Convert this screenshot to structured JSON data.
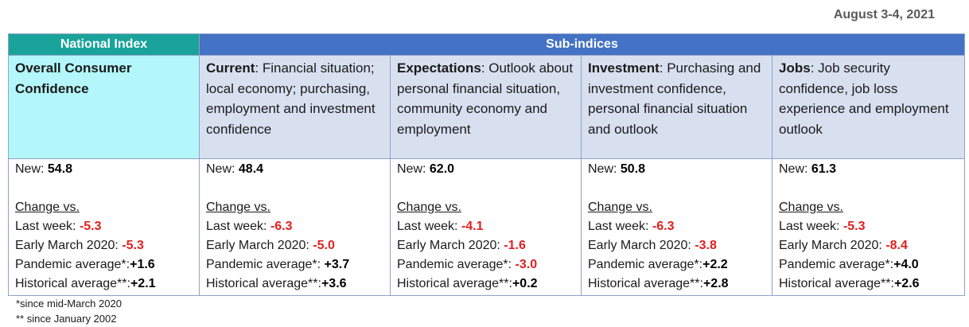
{
  "date": "August 3-4, 2021",
  "headers": {
    "national": "National Index",
    "sub": "Sub-indices"
  },
  "columns": [
    {
      "title": "Overall Consumer Confidence",
      "desc": "",
      "new_label": "New:",
      "new_value": "54.8",
      "change_label": "Change vs.",
      "last_week_label": "Last week:",
      "last_week": "-5.3",
      "early_march_label": "Early March 2020:",
      "early_march": "-5.3",
      "pandemic_label": "Pandemic average*:",
      "pandemic": "+1.6",
      "historical_label": "Historical average**:",
      "historical": "+2.1"
    },
    {
      "title": "Current",
      "desc": ":  Financial situation; local economy; purchasing, employment and investment confidence",
      "new_label": "New:",
      "new_value": "48.4",
      "change_label": "Change vs.",
      "last_week_label": "Last week:",
      "last_week": "-6.3",
      "early_march_label": "Early March 2020:",
      "early_march": "-5.0",
      "pandemic_label": "Pandemic average*:",
      "pandemic": "+3.7",
      "historical_label": "Historical average**:",
      "historical": "+3.6"
    },
    {
      "title": "Expectations",
      "desc": ": Outlook about personal financial situation, community economy and employment",
      "new_label": "New:",
      "new_value": "62.0",
      "change_label": "Change vs.",
      "last_week_label": "Last week:",
      "last_week": "-4.1",
      "early_march_label": "Early March 2020:",
      "early_march": "-1.6",
      "pandemic_label": "Pandemic average*:",
      "pandemic": "-3.0",
      "historical_label": "Historical average**:",
      "historical": "+0.2"
    },
    {
      "title": "Investment",
      "desc": ": Purchasing and investment confidence, personal financial situation and outlook",
      "new_label": "New:",
      "new_value": "50.8",
      "change_label": "Change vs.",
      "last_week_label": "Last week:",
      "last_week": "-6.3",
      "early_march_label": "Early March 2020:",
      "early_march": "-3.8",
      "pandemic_label": "Pandemic average*:",
      "pandemic": "+2.2",
      "historical_label": "Historical average**:",
      "historical": "+2.8"
    },
    {
      "title": "Jobs",
      "desc": ": Job security confidence, job loss experience and employment outlook",
      "new_label": "New:",
      "new_value": "61.3",
      "change_label": "Change vs.",
      "last_week_label": "Last week:",
      "last_week": "-5.3",
      "early_march_label": "Early March 2020:",
      "early_march": "-8.4",
      "pandemic_label": "Pandemic average*:",
      "pandemic": "+4.0",
      "historical_label": "Historical average**:",
      "historical": "+2.6"
    }
  ],
  "footnotes": {
    "one": "*since mid-March 2020",
    "two": "** since January 2002"
  },
  "colors": {
    "national_header": "#1aa39a",
    "sub_header": "#4472c4",
    "national_desc": "#b3f7fb",
    "sub_desc": "#d8e0f0",
    "negative": "#e02020"
  }
}
